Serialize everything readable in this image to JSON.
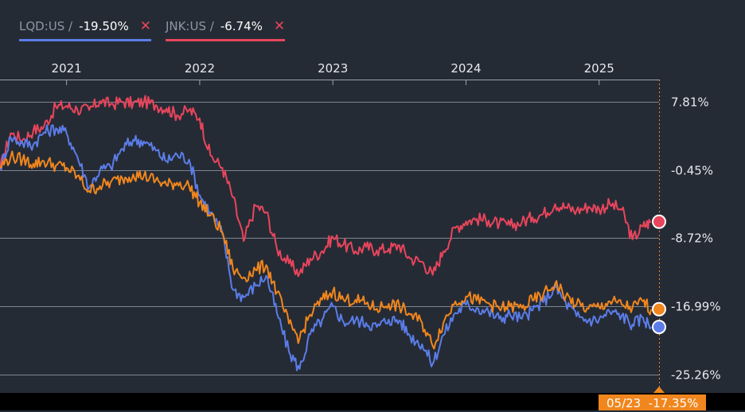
{
  "legend": [
    {
      "symbol": "LQD:US /",
      "value": "-19.50%",
      "color": "#5b7de9",
      "close": "✕"
    },
    {
      "symbol": "JNK:US /",
      "value": "-6.74%",
      "color": "#e8455c",
      "close": "✕"
    }
  ],
  "crosshair": {
    "date": "05/23",
    "value": "-17.35%",
    "color": "#f0861d"
  },
  "chart_data": {
    "type": "line",
    "x_ticks": [
      "2021",
      "2022",
      "2023",
      "2024",
      "2025"
    ],
    "y_ticks": [
      "7.81%",
      "-0.45%",
      "-8.72%",
      "-16.99%",
      "-25.26%"
    ],
    "y_tick_values": [
      7.81,
      -0.45,
      -8.72,
      -16.99,
      -25.26
    ],
    "ylim": [
      -27.5,
      10.5
    ],
    "xlim": [
      2020.5,
      2025.45
    ],
    "grid": true,
    "series": [
      {
        "name": "JNK:US",
        "color": "#e8455c",
        "points": [
          [
            2020.5,
            -0.4
          ],
          [
            2020.58,
            4.0
          ],
          [
            2020.67,
            3.2
          ],
          [
            2020.75,
            4.3
          ],
          [
            2020.83,
            4.8
          ],
          [
            2020.92,
            7.2
          ],
          [
            2021.0,
            7.3
          ],
          [
            2021.08,
            6.9
          ],
          [
            2021.17,
            6.8
          ],
          [
            2021.25,
            7.9
          ],
          [
            2021.33,
            7.5
          ],
          [
            2021.42,
            7.8
          ],
          [
            2021.5,
            7.6
          ],
          [
            2021.58,
            7.8
          ],
          [
            2021.67,
            7.4
          ],
          [
            2021.75,
            7.0
          ],
          [
            2021.83,
            6.2
          ],
          [
            2021.92,
            6.8
          ],
          [
            2022.0,
            5.8
          ],
          [
            2022.08,
            1.3
          ],
          [
            2022.17,
            -0.2
          ],
          [
            2022.25,
            -3.8
          ],
          [
            2022.33,
            -9.1
          ],
          [
            2022.42,
            -4.8
          ],
          [
            2022.5,
            -5.6
          ],
          [
            2022.58,
            -10.0
          ],
          [
            2022.67,
            -11.8
          ],
          [
            2022.75,
            -13.0
          ],
          [
            2022.83,
            -11.2
          ],
          [
            2022.92,
            -10.3
          ],
          [
            2023.0,
            -8.6
          ],
          [
            2023.08,
            -9.5
          ],
          [
            2023.17,
            -10.3
          ],
          [
            2023.25,
            -9.8
          ],
          [
            2023.33,
            -10.2
          ],
          [
            2023.42,
            -10.0
          ],
          [
            2023.5,
            -9.6
          ],
          [
            2023.58,
            -11.2
          ],
          [
            2023.67,
            -11.6
          ],
          [
            2023.75,
            -13.2
          ],
          [
            2023.83,
            -10.3
          ],
          [
            2023.92,
            -7.5
          ],
          [
            2024.0,
            -6.7
          ],
          [
            2024.08,
            -6.4
          ],
          [
            2024.17,
            -6.6
          ],
          [
            2024.25,
            -7.0
          ],
          [
            2024.33,
            -7.2
          ],
          [
            2024.42,
            -6.8
          ],
          [
            2024.5,
            -6.2
          ],
          [
            2024.58,
            -5.8
          ],
          [
            2024.67,
            -4.6
          ],
          [
            2024.75,
            -5.0
          ],
          [
            2024.83,
            -5.4
          ],
          [
            2024.92,
            -4.9
          ],
          [
            2025.0,
            -5.2
          ],
          [
            2025.08,
            -4.6
          ],
          [
            2025.17,
            -5.3
          ],
          [
            2025.25,
            -8.9
          ],
          [
            2025.33,
            -7.3
          ],
          [
            2025.39,
            -6.74
          ]
        ]
      },
      {
        "name": "LQD:US",
        "color": "#5b7de9",
        "points": [
          [
            2020.5,
            -0.3
          ],
          [
            2020.58,
            3.5
          ],
          [
            2020.67,
            2.8
          ],
          [
            2020.75,
            2.6
          ],
          [
            2020.83,
            4.1
          ],
          [
            2020.92,
            4.6
          ],
          [
            2021.0,
            4.0
          ],
          [
            2021.08,
            1.2
          ],
          [
            2021.17,
            -2.6
          ],
          [
            2021.25,
            -0.5
          ],
          [
            2021.33,
            -0.1
          ],
          [
            2021.42,
            2.1
          ],
          [
            2021.5,
            3.2
          ],
          [
            2021.58,
            3.0
          ],
          [
            2021.67,
            1.9
          ],
          [
            2021.75,
            0.6
          ],
          [
            2021.83,
            1.4
          ],
          [
            2021.92,
            0.8
          ],
          [
            2022.0,
            -3.5
          ],
          [
            2022.08,
            -5.6
          ],
          [
            2022.17,
            -8.2
          ],
          [
            2022.25,
            -15.0
          ],
          [
            2022.33,
            -15.9
          ],
          [
            2022.42,
            -14.5
          ],
          [
            2022.5,
            -13.3
          ],
          [
            2022.58,
            -17.8
          ],
          [
            2022.67,
            -22.5
          ],
          [
            2022.75,
            -24.6
          ],
          [
            2022.83,
            -20.4
          ],
          [
            2022.92,
            -18.6
          ],
          [
            2023.0,
            -17.0
          ],
          [
            2023.08,
            -18.9
          ],
          [
            2023.17,
            -18.7
          ],
          [
            2023.25,
            -19.0
          ],
          [
            2023.33,
            -19.5
          ],
          [
            2023.42,
            -18.6
          ],
          [
            2023.5,
            -18.7
          ],
          [
            2023.58,
            -20.6
          ],
          [
            2023.67,
            -21.6
          ],
          [
            2023.75,
            -24.0
          ],
          [
            2023.83,
            -20.5
          ],
          [
            2023.92,
            -17.8
          ],
          [
            2024.0,
            -16.8
          ],
          [
            2024.08,
            -17.2
          ],
          [
            2024.17,
            -17.7
          ],
          [
            2024.25,
            -18.5
          ],
          [
            2024.33,
            -18.0
          ],
          [
            2024.42,
            -18.5
          ],
          [
            2024.5,
            -17.5
          ],
          [
            2024.58,
            -16.5
          ],
          [
            2024.67,
            -14.7
          ],
          [
            2024.75,
            -16.6
          ],
          [
            2024.83,
            -18.2
          ],
          [
            2024.92,
            -18.7
          ],
          [
            2025.0,
            -18.6
          ],
          [
            2025.08,
            -17.7
          ],
          [
            2025.17,
            -18.1
          ],
          [
            2025.25,
            -19.2
          ],
          [
            2025.33,
            -18.4
          ],
          [
            2025.39,
            -19.5
          ]
        ]
      },
      {
        "name": "",
        "color": "#f0861d",
        "points": [
          [
            2020.5,
            -0.1
          ],
          [
            2020.58,
            1.1
          ],
          [
            2020.67,
            0.8
          ],
          [
            2020.75,
            0.3
          ],
          [
            2020.83,
            0.6
          ],
          [
            2020.92,
            0.1
          ],
          [
            2021.0,
            -0.2
          ],
          [
            2021.08,
            -1.2
          ],
          [
            2021.17,
            -3.0
          ],
          [
            2021.25,
            -2.4
          ],
          [
            2021.33,
            -2.0
          ],
          [
            2021.42,
            -1.5
          ],
          [
            2021.5,
            -1.0
          ],
          [
            2021.58,
            -1.2
          ],
          [
            2021.67,
            -1.7
          ],
          [
            2021.75,
            -2.3
          ],
          [
            2021.83,
            -2.0
          ],
          [
            2021.92,
            -2.4
          ],
          [
            2022.0,
            -4.4
          ],
          [
            2022.08,
            -6.0
          ],
          [
            2022.17,
            -8.0
          ],
          [
            2022.25,
            -12.5
          ],
          [
            2022.33,
            -13.5
          ],
          [
            2022.42,
            -12.6
          ],
          [
            2022.5,
            -12.0
          ],
          [
            2022.58,
            -15.3
          ],
          [
            2022.67,
            -19.1
          ],
          [
            2022.75,
            -20.9
          ],
          [
            2022.83,
            -18.0
          ],
          [
            2022.92,
            -16.2
          ],
          [
            2023.0,
            -15.2
          ],
          [
            2023.08,
            -16.2
          ],
          [
            2023.17,
            -16.2
          ],
          [
            2023.25,
            -16.7
          ],
          [
            2023.33,
            -17.3
          ],
          [
            2023.42,
            -16.7
          ],
          [
            2023.5,
            -17.0
          ],
          [
            2023.58,
            -18.0
          ],
          [
            2023.67,
            -19.0
          ],
          [
            2023.75,
            -21.8
          ],
          [
            2023.83,
            -19.0
          ],
          [
            2023.92,
            -16.4
          ],
          [
            2024.0,
            -15.8
          ],
          [
            2024.08,
            -16.3
          ],
          [
            2024.17,
            -16.6
          ],
          [
            2024.25,
            -17.3
          ],
          [
            2024.33,
            -17.0
          ],
          [
            2024.42,
            -17.2
          ],
          [
            2024.5,
            -16.3
          ],
          [
            2024.58,
            -15.6
          ],
          [
            2024.67,
            -14.2
          ],
          [
            2024.75,
            -15.8
          ],
          [
            2024.83,
            -16.8
          ],
          [
            2024.92,
            -17.3
          ],
          [
            2025.0,
            -17.1
          ],
          [
            2025.08,
            -16.4
          ],
          [
            2025.17,
            -16.8
          ],
          [
            2025.25,
            -17.2
          ],
          [
            2025.33,
            -16.4
          ],
          [
            2025.39,
            -17.35
          ]
        ]
      }
    ]
  }
}
